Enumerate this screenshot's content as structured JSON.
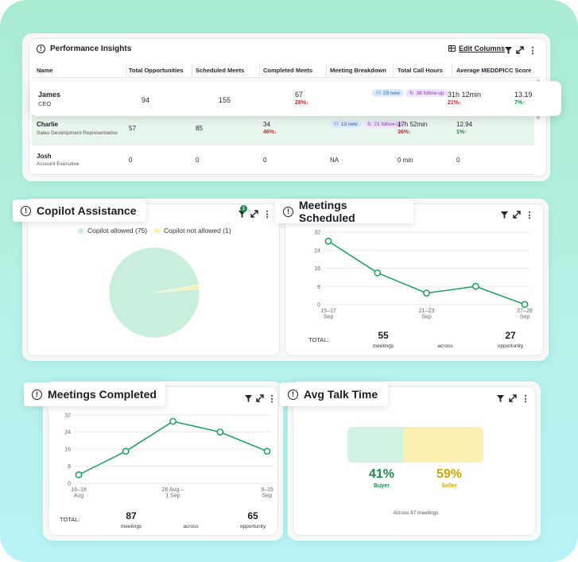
{
  "performance": {
    "title": "Performance Insights",
    "edit_columns": "Edit Columns",
    "columns": [
      "Name",
      "Total Opportunities",
      "Scheduled Meets",
      "Completed Meets",
      "Meeting Breakdown",
      "Total Call Hours",
      "Average MEDDPICC Score"
    ],
    "rows": [
      {
        "name": "James",
        "role": "CEO",
        "opps": "94",
        "sched": "155",
        "completed": "67",
        "completed_delta": "28%↓",
        "new": "29 new",
        "followup": "38 follow-up",
        "hours": "31h 12min",
        "hours_delta": "21%↓",
        "score": "13.19",
        "score_delta": "7%↑"
      },
      {
        "name": "Charlie",
        "role": "Sales Development Representative",
        "opps": "57",
        "sched": "85",
        "completed": "34",
        "completed_delta": "46%↓",
        "new": "13 new",
        "followup": "21 follow-up",
        "hours": "17h 52min",
        "hours_delta": "36%↓",
        "score": "12.94",
        "score_delta": "1%↑"
      },
      {
        "name": "Josh",
        "role": "Account Executive",
        "opps": "0",
        "sched": "0",
        "completed": "0",
        "breakdown": "NA",
        "hours": "0 min",
        "score": "0"
      }
    ]
  },
  "copilot": {
    "title": "Copilot Assistance",
    "badge": "1",
    "legend": [
      {
        "label": "Copilot allowed (75)",
        "color": "#c9efdc"
      },
      {
        "label": "Copilot not allowed (1)",
        "color": "#fbf0b0"
      }
    ],
    "chart_data": {
      "type": "pie",
      "categories": [
        "Copilot allowed",
        "Copilot not allowed"
      ],
      "values": [
        75,
        1
      ],
      "colors": [
        "#c9efdc",
        "#fbf0b0"
      ]
    }
  },
  "scheduled": {
    "title": "Meetings Scheduled",
    "total_label": "TOTAL:",
    "total_value": "55",
    "total_unit": "meetings",
    "across": "across",
    "opp_value": "27",
    "opp_unit": "opportunity",
    "chart_data": {
      "type": "line",
      "x": [
        "15–17 Sep",
        "",
        "21–23 Sep",
        "",
        "27–28 Sep"
      ],
      "tick_lines": [
        [
          "15–17",
          "Sep"
        ],
        [
          "",
          ""
        ],
        [
          "21–23",
          "Sep"
        ],
        [
          "",
          ""
        ],
        [
          "27–28",
          "Sep"
        ]
      ],
      "values": [
        28,
        14,
        5,
        8,
        0
      ],
      "yticks": [
        0,
        8,
        16,
        24,
        32
      ],
      "ylim": [
        0,
        32
      ],
      "color": "#1aa05a",
      "grid": true
    }
  },
  "completed": {
    "title": "Meetings Completed",
    "total_label": "TOTAL:",
    "total_value": "87",
    "total_unit": "meetings",
    "across": "across",
    "opp_value": "65",
    "opp_unit": "opportunity",
    "chart_data": {
      "type": "line",
      "x": [
        "16–18 Aug",
        "",
        "26 Aug – 1 Sep",
        "",
        "9–15 Sep"
      ],
      "tick_lines": [
        [
          "16–18",
          "Aug"
        ],
        [
          "",
          ""
        ],
        [
          "26 Aug –",
          "1 Sep"
        ],
        [
          "",
          ""
        ],
        [
          "9–15",
          "Sep"
        ]
      ],
      "values": [
        4,
        15,
        29,
        24,
        15
      ],
      "yticks": [
        0,
        8,
        16,
        24,
        32
      ],
      "ylim": [
        0,
        32
      ],
      "color": "#1aa05a",
      "grid": true
    }
  },
  "talk": {
    "title": "Avg Talk Time",
    "buyer_pct": "41%",
    "buyer_label": "Buyer",
    "seller_pct": "59%",
    "seller_label": "Seller",
    "footer": "Across 87 meetings",
    "buyer_share": 0.41,
    "buyer_color": "#d1f3e3",
    "seller_color": "#fcf1b3"
  }
}
